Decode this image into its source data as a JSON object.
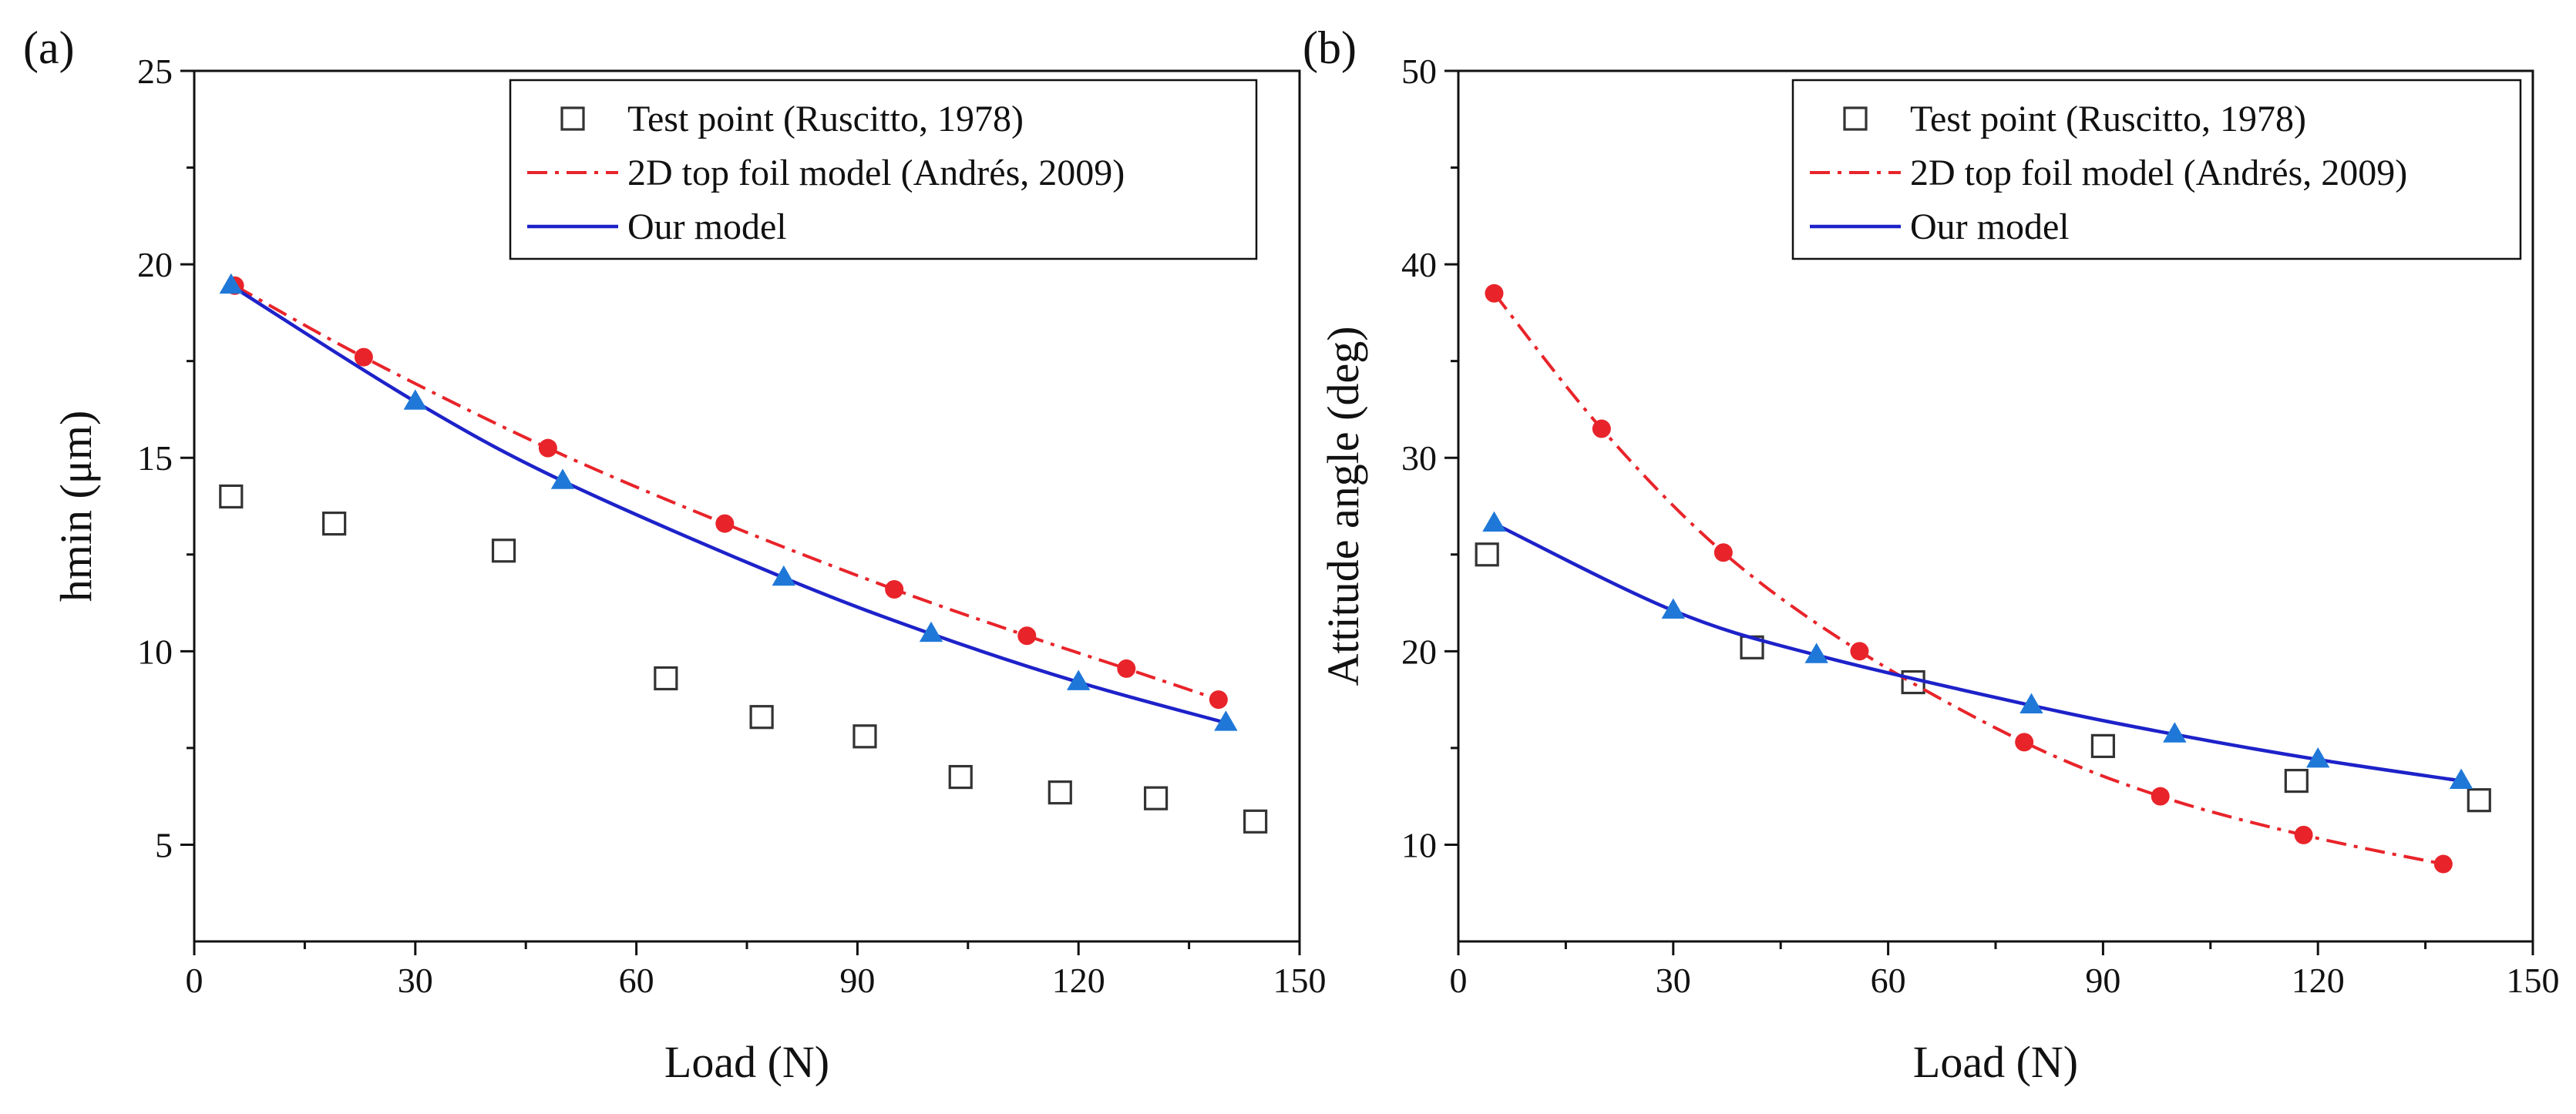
{
  "chart_data": [
    {
      "type": "line",
      "panel_label": "(a)",
      "xlabel": "Load (N)",
      "ylabel": "hmin (μm)",
      "xlim": [
        0,
        150
      ],
      "ylim": [
        2.5,
        25
      ],
      "xticks": [
        0,
        30,
        60,
        90,
        120,
        150
      ],
      "yticks": [
        5,
        10,
        15,
        20,
        25
      ],
      "legend_position": "top-right",
      "series": [
        {
          "name": "Test point (Ruscitto, 1978)",
          "style": "open-square",
          "color": "#333333",
          "x": [
            5,
            19,
            42,
            64,
            77,
            91,
            104,
            117.5,
            130.5,
            144
          ],
          "y": [
            14,
            13.3,
            12.6,
            9.3,
            8.3,
            7.8,
            6.75,
            6.35,
            6.2,
            5.6
          ]
        },
        {
          "name": "2D top foil model (Andrés, 2009)",
          "style": "dashdot-circle",
          "color": "#e8242a",
          "x": [
            5.5,
            23,
            48,
            72,
            95,
            113,
            126.5,
            139
          ],
          "y": [
            19.45,
            17.6,
            15.25,
            13.3,
            11.6,
            10.4,
            9.55,
            8.75
          ]
        },
        {
          "name": "Our model",
          "style": "solid-triangle",
          "color": "#1d22c9",
          "marker_color": "#1f78d8",
          "x": [
            5,
            30,
            50,
            80,
            100,
            120,
            140
          ],
          "y": [
            19.45,
            16.45,
            14.4,
            11.9,
            10.45,
            9.2,
            8.15
          ]
        }
      ]
    },
    {
      "type": "line",
      "panel_label": "(b)",
      "xlabel": "Load (N)",
      "ylabel": "Attitude angle (deg)",
      "xlim": [
        0,
        150
      ],
      "ylim": [
        5,
        50
      ],
      "xticks": [
        0,
        30,
        60,
        90,
        120,
        150
      ],
      "yticks": [
        10,
        20,
        30,
        40,
        50
      ],
      "legend_position": "top-right",
      "series": [
        {
          "name": "Test point (Ruscitto, 1978)",
          "style": "open-square",
          "color": "#333333",
          "x": [
            4,
            41,
            63.5,
            90,
            117,
            142.5
          ],
          "y": [
            25,
            20.2,
            18.4,
            15.1,
            13.3,
            12.3
          ]
        },
        {
          "name": "2D top foil model (Andrés, 2009)",
          "style": "dashdot-circle",
          "color": "#e8242a",
          "x": [
            5,
            20,
            37,
            56,
            79,
            98,
            118,
            137.5
          ],
          "y": [
            38.5,
            31.5,
            25.1,
            20,
            15.3,
            12.5,
            10.5,
            9
          ]
        },
        {
          "name": "Our model",
          "style": "solid-triangle",
          "color": "#1d22c9",
          "marker_color": "#1f78d8",
          "x": [
            5,
            30,
            50,
            80,
            100,
            120,
            140
          ],
          "y": [
            26.6,
            22.1,
            19.8,
            17.2,
            15.7,
            14.4,
            13.3
          ]
        }
      ]
    }
  ]
}
